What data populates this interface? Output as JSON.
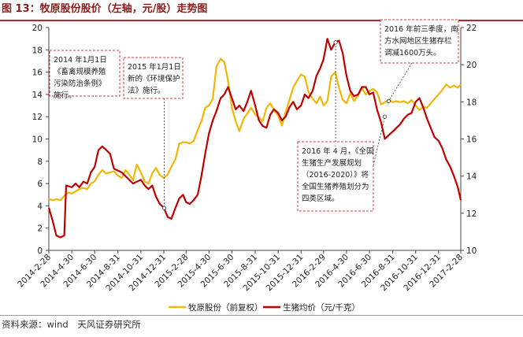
{
  "title": "图 13：牧原股份股价（左轴，元/股）走势图",
  "source": "资料来源：wind　天风证券研究所",
  "colors": {
    "stock": "#f2b705",
    "hog": "#c00000",
    "annotation_border": "#d23c3c",
    "title": "#8b1a1a"
  },
  "chart_data": {
    "type": "line",
    "x_type": "date",
    "x_range": [
      "2014-02-28",
      "2017-02-28"
    ],
    "x_tick_labels": [
      "2014-2-28",
      "2014-4-30",
      "2014-6-30",
      "2014-8-31",
      "2014-10-31",
      "2014-12-31",
      "2015-2-28",
      "2015-4-30",
      "2015-6-30",
      "2015-8-31",
      "2015-10-31",
      "2015-12-31",
      "2016-2-29",
      "2016-4-30",
      "2016-6-30",
      "2016-8-31",
      "2016-10-31",
      "2016-12-31",
      "2017-2-28"
    ],
    "x_tick_dates": [
      "2014-02-28",
      "2014-04-30",
      "2014-06-30",
      "2014-08-31",
      "2014-10-31",
      "2014-12-31",
      "2015-02-28",
      "2015-04-30",
      "2015-06-30",
      "2015-08-31",
      "2015-10-31",
      "2015-12-31",
      "2016-02-29",
      "2016-04-30",
      "2016-06-30",
      "2016-08-31",
      "2016-10-31",
      "2016-12-31",
      "2017-02-28"
    ],
    "y_left": {
      "range": [
        0,
        20
      ],
      "ticks": [
        0,
        2,
        4,
        6,
        8,
        10,
        12,
        14,
        16,
        18,
        20
      ]
    },
    "y_right": {
      "range": [
        10,
        22
      ],
      "ticks": [
        10,
        12,
        14,
        16,
        18,
        20,
        22
      ]
    },
    "legend_position": "bottom-center",
    "grid": false,
    "series": [
      {
        "name": "牧原股份（前复权）",
        "axis": "left",
        "color": "#f2b705",
        "points": [
          [
            "2014-02-28",
            4.6
          ],
          [
            "2014-03-10",
            4.5
          ],
          [
            "2014-03-20",
            4.6
          ],
          [
            "2014-03-31",
            4.5
          ],
          [
            "2014-04-10",
            4.9
          ],
          [
            "2014-04-20",
            5.2
          ],
          [
            "2014-04-30",
            5.1
          ],
          [
            "2014-05-10",
            5.3
          ],
          [
            "2014-05-20",
            5.5
          ],
          [
            "2014-05-31",
            5.6
          ],
          [
            "2014-06-10",
            5.5
          ],
          [
            "2014-06-20",
            6.0
          ],
          [
            "2014-06-30",
            6.2
          ],
          [
            "2014-07-10",
            6.8
          ],
          [
            "2014-07-20",
            7.2
          ],
          [
            "2014-07-31",
            6.9
          ],
          [
            "2014-08-10",
            7.0
          ],
          [
            "2014-08-20",
            7.1
          ],
          [
            "2014-08-31",
            6.7
          ],
          [
            "2014-09-10",
            6.5
          ],
          [
            "2014-09-20",
            7.2
          ],
          [
            "2014-09-30",
            6.8
          ],
          [
            "2014-10-10",
            6.3
          ],
          [
            "2014-10-20",
            7.7
          ],
          [
            "2014-10-31",
            7.0
          ],
          [
            "2014-11-10",
            6.2
          ],
          [
            "2014-11-20",
            6.0
          ],
          [
            "2014-11-30",
            6.9
          ],
          [
            "2014-12-10",
            7.4
          ],
          [
            "2014-12-20",
            6.8
          ],
          [
            "2014-12-31",
            6.5
          ],
          [
            "2015-01-10",
            6.8
          ],
          [
            "2015-01-20",
            7.5
          ],
          [
            "2015-01-31",
            8.2
          ],
          [
            "2015-02-10",
            9.6
          ],
          [
            "2015-02-20",
            9.7
          ],
          [
            "2015-02-28",
            9.7
          ],
          [
            "2015-03-10",
            9.6
          ],
          [
            "2015-03-20",
            9.8
          ],
          [
            "2015-03-31",
            10.8
          ],
          [
            "2015-04-10",
            11.6
          ],
          [
            "2015-04-20",
            12.8
          ],
          [
            "2015-04-30",
            13.0
          ],
          [
            "2015-05-10",
            13.6
          ],
          [
            "2015-05-20",
            16.5
          ],
          [
            "2015-05-31",
            17.2
          ],
          [
            "2015-06-10",
            16.9
          ],
          [
            "2015-06-20",
            15.2
          ],
          [
            "2015-06-30",
            12.8
          ],
          [
            "2015-07-10",
            11.6
          ],
          [
            "2015-07-20",
            10.7
          ],
          [
            "2015-07-31",
            11.8
          ],
          [
            "2015-08-10",
            12.3
          ],
          [
            "2015-08-20",
            12.8
          ],
          [
            "2015-08-31",
            12.2
          ],
          [
            "2015-09-10",
            11.9
          ],
          [
            "2015-09-20",
            11.6
          ],
          [
            "2015-09-30",
            12.8
          ],
          [
            "2015-10-10",
            13.2
          ],
          [
            "2015-10-20",
            12.6
          ],
          [
            "2015-10-31",
            12.1
          ],
          [
            "2015-11-10",
            11.2
          ],
          [
            "2015-11-20",
            12.4
          ],
          [
            "2015-11-30",
            13.5
          ],
          [
            "2015-12-10",
            14.6
          ],
          [
            "2015-12-20",
            15.2
          ],
          [
            "2015-12-31",
            15.8
          ],
          [
            "2016-01-10",
            15.6
          ],
          [
            "2016-01-20",
            14.2
          ],
          [
            "2016-01-31",
            13.6
          ],
          [
            "2016-02-10",
            13.2
          ],
          [
            "2016-02-20",
            13.8
          ],
          [
            "2016-02-29",
            13.0
          ],
          [
            "2016-03-10",
            13.4
          ],
          [
            "2016-03-20",
            15.6
          ],
          [
            "2016-03-31",
            16.0
          ],
          [
            "2016-04-10",
            14.6
          ],
          [
            "2016-04-20",
            13.5
          ],
          [
            "2016-04-30",
            13.2
          ],
          [
            "2016-05-10",
            14.1
          ],
          [
            "2016-05-20",
            13.4
          ],
          [
            "2016-05-31",
            13.9
          ],
          [
            "2016-06-10",
            14.6
          ],
          [
            "2016-06-20",
            14.0
          ],
          [
            "2016-06-30",
            14.3
          ],
          [
            "2016-07-10",
            14.5
          ],
          [
            "2016-07-20",
            14.2
          ],
          [
            "2016-07-31",
            13.1
          ],
          [
            "2016-08-10",
            13.3
          ],
          [
            "2016-08-20",
            13.5
          ],
          [
            "2016-08-31",
            13.3
          ],
          [
            "2016-09-10",
            13.4
          ],
          [
            "2016-09-20",
            13.3
          ],
          [
            "2016-09-30",
            13.4
          ],
          [
            "2016-10-10",
            13.2
          ],
          [
            "2016-10-20",
            13.5
          ],
          [
            "2016-10-31",
            13.0
          ],
          [
            "2016-11-10",
            12.6
          ],
          [
            "2016-11-20",
            12.9
          ],
          [
            "2016-11-30",
            12.8
          ],
          [
            "2016-12-10",
            13.2
          ],
          [
            "2016-12-20",
            13.6
          ],
          [
            "2016-12-31",
            14.0
          ],
          [
            "2017-01-10",
            14.4
          ],
          [
            "2017-01-20",
            14.9
          ],
          [
            "2017-01-31",
            14.6
          ],
          [
            "2017-02-10",
            14.8
          ],
          [
            "2017-02-20",
            14.6
          ],
          [
            "2017-02-28",
            14.9
          ]
        ]
      },
      {
        "name": "生猪均价（元/千克）",
        "axis": "right",
        "color": "#c00000",
        "points": [
          [
            "2014-02-28",
            12.3
          ],
          [
            "2014-03-10",
            11.6
          ],
          [
            "2014-03-20",
            10.8
          ],
          [
            "2014-03-31",
            10.7
          ],
          [
            "2014-04-10",
            10.8
          ],
          [
            "2014-04-15",
            13.5
          ],
          [
            "2014-04-30",
            13.4
          ],
          [
            "2014-05-10",
            13.6
          ],
          [
            "2014-05-20",
            13.4
          ],
          [
            "2014-05-31",
            13.7
          ],
          [
            "2014-06-10",
            13.6
          ],
          [
            "2014-06-20",
            14.2
          ],
          [
            "2014-06-30",
            14.5
          ],
          [
            "2014-07-10",
            15.4
          ],
          [
            "2014-07-20",
            15.6
          ],
          [
            "2014-07-31",
            15.4
          ],
          [
            "2014-08-10",
            15.2
          ],
          [
            "2014-08-20",
            14.4
          ],
          [
            "2014-08-31",
            14.3
          ],
          [
            "2014-09-10",
            14.2
          ],
          [
            "2014-09-20",
            14.0
          ],
          [
            "2014-09-30",
            13.8
          ],
          [
            "2014-10-10",
            13.6
          ],
          [
            "2014-10-20",
            13.7
          ],
          [
            "2014-10-31",
            13.8
          ],
          [
            "2014-11-10",
            13.5
          ],
          [
            "2014-11-20",
            13.3
          ],
          [
            "2014-11-30",
            13.5
          ],
          [
            "2014-12-10",
            12.9
          ],
          [
            "2014-12-20",
            12.5
          ],
          [
            "2014-12-31",
            12.3
          ],
          [
            "2015-01-10",
            11.8
          ],
          [
            "2015-01-20",
            11.7
          ],
          [
            "2015-01-31",
            12.3
          ],
          [
            "2015-02-10",
            12.8
          ],
          [
            "2015-02-20",
            13.0
          ],
          [
            "2015-02-28",
            12.6
          ],
          [
            "2015-03-10",
            12.5
          ],
          [
            "2015-03-20",
            12.7
          ],
          [
            "2015-03-31",
            13.0
          ],
          [
            "2015-04-10",
            14.0
          ],
          [
            "2015-04-20",
            15.2
          ],
          [
            "2015-04-30",
            16.3
          ],
          [
            "2015-05-10",
            17.0
          ],
          [
            "2015-05-20",
            17.5
          ],
          [
            "2015-05-31",
            18.2
          ],
          [
            "2015-06-10",
            18.4
          ],
          [
            "2015-06-20",
            18.8
          ],
          [
            "2015-06-30",
            18.2
          ],
          [
            "2015-07-10",
            17.6
          ],
          [
            "2015-07-20",
            17.8
          ],
          [
            "2015-07-31",
            17.5
          ],
          [
            "2015-08-10",
            18.0
          ],
          [
            "2015-08-20",
            18.6
          ],
          [
            "2015-08-31",
            17.8
          ],
          [
            "2015-09-10",
            17.0
          ],
          [
            "2015-09-20",
            16.7
          ],
          [
            "2015-09-30",
            16.6
          ],
          [
            "2015-10-10",
            17.3
          ],
          [
            "2015-10-20",
            17.6
          ],
          [
            "2015-10-31",
            17.4
          ],
          [
            "2015-11-10",
            17.0
          ],
          [
            "2015-11-20",
            17.2
          ],
          [
            "2015-11-30",
            17.7
          ],
          [
            "2015-12-10",
            18.0
          ],
          [
            "2015-12-20",
            17.6
          ],
          [
            "2015-12-31",
            17.8
          ],
          [
            "2016-01-10",
            18.4
          ],
          [
            "2016-01-20",
            18.2
          ],
          [
            "2016-01-31",
            18.6
          ],
          [
            "2016-02-10",
            19.4
          ],
          [
            "2016-02-20",
            19.8
          ],
          [
            "2016-02-29",
            20.3
          ],
          [
            "2016-03-10",
            21.4
          ],
          [
            "2016-03-20",
            20.8
          ],
          [
            "2016-03-31",
            21.2
          ],
          [
            "2016-04-10",
            21.3
          ],
          [
            "2016-04-20",
            20.6
          ],
          [
            "2016-04-30",
            19.4
          ],
          [
            "2016-05-10",
            18.6
          ],
          [
            "2016-05-20",
            18.3
          ],
          [
            "2016-05-31",
            18.4
          ],
          [
            "2016-06-10",
            18.8
          ],
          [
            "2016-06-20",
            18.8
          ],
          [
            "2016-06-30",
            18.4
          ],
          [
            "2016-07-10",
            18.5
          ],
          [
            "2016-07-20",
            17.6
          ],
          [
            "2016-07-31",
            16.9
          ],
          [
            "2016-08-10",
            16.0
          ],
          [
            "2016-08-20",
            16.2
          ],
          [
            "2016-08-31",
            16.4
          ],
          [
            "2016-09-10",
            16.6
          ],
          [
            "2016-09-20",
            16.8
          ],
          [
            "2016-09-30",
            17.1
          ],
          [
            "2016-10-10",
            17.3
          ],
          [
            "2016-10-20",
            17.4
          ],
          [
            "2016-10-31",
            18.0
          ],
          [
            "2016-11-10",
            18.2
          ],
          [
            "2016-11-20",
            17.7
          ],
          [
            "2016-11-30",
            17.1
          ],
          [
            "2016-12-10",
            16.6
          ],
          [
            "2016-12-20",
            16.1
          ],
          [
            "2016-12-31",
            15.9
          ],
          [
            "2017-01-10",
            15.5
          ],
          [
            "2017-01-20",
            14.9
          ],
          [
            "2017-01-31",
            14.5
          ],
          [
            "2017-02-10",
            14.0
          ],
          [
            "2017-02-20",
            13.4
          ],
          [
            "2017-02-28",
            12.7
          ]
        ]
      }
    ],
    "annotations": [
      {
        "id": "ann2014",
        "lines": [
          "2014 年1月1日",
          "《畜禽规模养殖",
          "污染防治条例》",
          "施行。"
        ]
      },
      {
        "id": "ann2015",
        "lines": [
          "2015 年1月1日",
          "新的《环境保护",
          "法》施行。"
        ]
      },
      {
        "id": "ann2016q3",
        "lines": [
          "2016 年前三季度，南",
          "方水网地区生猪存栏",
          "调减1600万头。"
        ]
      },
      {
        "id": "ann2016apr",
        "lines": [
          "2016 年 4 月，《全国",
          "生猪生产发展规划",
          "（2016-2020）》将",
          "全国生猪养殖划分为",
          "四类区域。"
        ]
      }
    ]
  }
}
